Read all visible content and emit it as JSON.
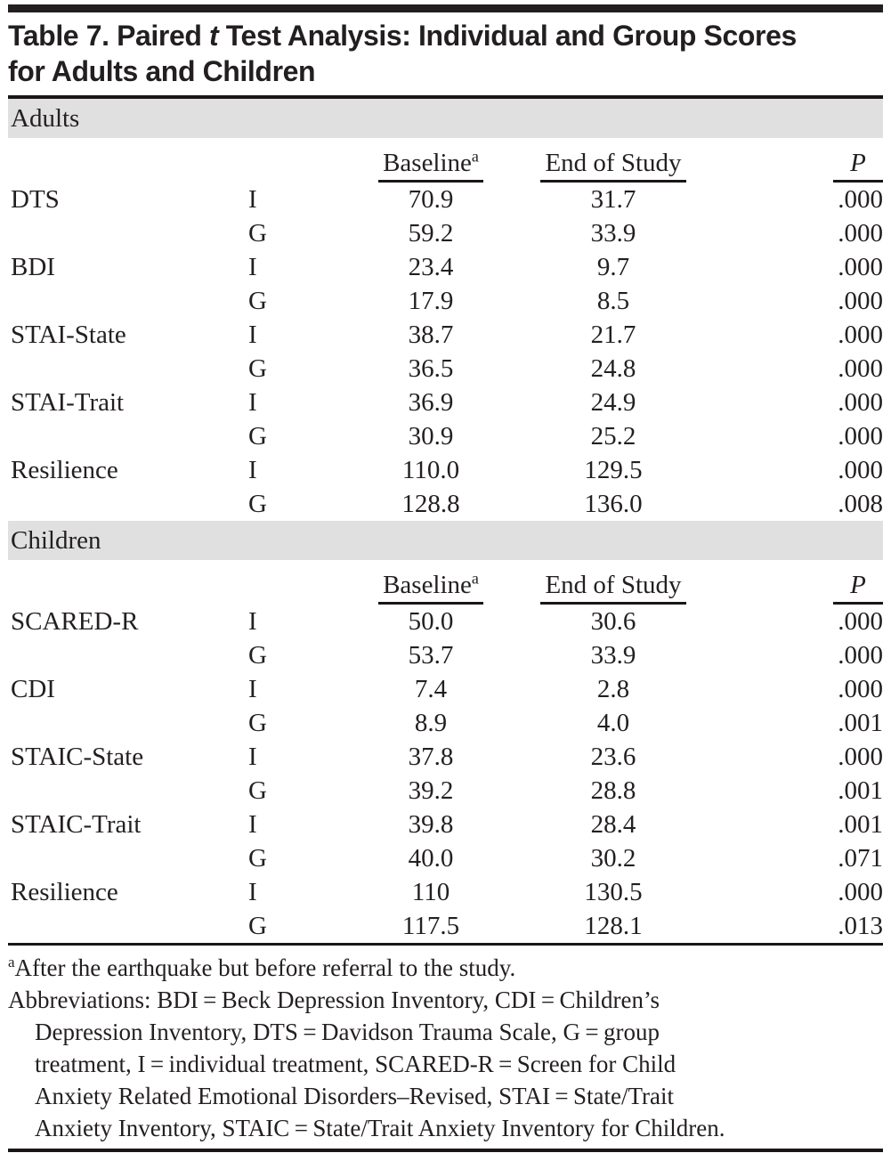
{
  "title": {
    "line1_part1": "Table 7. Paired ",
    "line1_italic": "t",
    "line1_part2": " Test Analysis: Individual and Group Scores",
    "line2": "for Adults and Children"
  },
  "columns": {
    "baseline": "Baseline",
    "baseline_sup": "a",
    "end_of_study": "End of Study",
    "p": "P"
  },
  "sections": [
    {
      "label": "Adults",
      "rows": [
        {
          "scale": "DTS",
          "group": "I",
          "baseline": "70.9",
          "end": "31.7",
          "p": ".000"
        },
        {
          "scale": "",
          "group": "G",
          "baseline": "59.2",
          "end": "33.9",
          "p": ".000"
        },
        {
          "scale": "BDI",
          "group": "I",
          "baseline": "23.4",
          "end": "9.7",
          "p": ".000"
        },
        {
          "scale": "",
          "group": "G",
          "baseline": "17.9",
          "end": "8.5",
          "p": ".000"
        },
        {
          "scale": "STAI-State",
          "group": "I",
          "baseline": "38.7",
          "end": "21.7",
          "p": ".000"
        },
        {
          "scale": "",
          "group": "G",
          "baseline": "36.5",
          "end": "24.8",
          "p": ".000"
        },
        {
          "scale": "STAI-Trait",
          "group": "I",
          "baseline": "36.9",
          "end": "24.9",
          "p": ".000"
        },
        {
          "scale": "",
          "group": "G",
          "baseline": "30.9",
          "end": "25.2",
          "p": ".000"
        },
        {
          "scale": "Resilience",
          "group": "I",
          "baseline": "110.0",
          "end": "129.5",
          "p": ".000"
        },
        {
          "scale": "",
          "group": "G",
          "baseline": "128.8",
          "end": "136.0",
          "p": ".008"
        }
      ]
    },
    {
      "label": "Children",
      "rows": [
        {
          "scale": "SCARED-R",
          "group": "I",
          "baseline": "50.0",
          "end": "30.6",
          "p": ".000"
        },
        {
          "scale": "",
          "group": "G",
          "baseline": "53.7",
          "end": "33.9",
          "p": ".000"
        },
        {
          "scale": "CDI",
          "group": "I",
          "baseline": "7.4",
          "end": "2.8",
          "p": ".000"
        },
        {
          "scale": "",
          "group": "G",
          "baseline": "8.9",
          "end": "4.0",
          "p": ".001"
        },
        {
          "scale": "STAIC-State",
          "group": "I",
          "baseline": "37.8",
          "end": "23.6",
          "p": ".000"
        },
        {
          "scale": "",
          "group": "G",
          "baseline": "39.2",
          "end": "28.8",
          "p": ".001"
        },
        {
          "scale": "STAIC-Trait",
          "group": "I",
          "baseline": "39.8",
          "end": "28.4",
          "p": ".001"
        },
        {
          "scale": "",
          "group": "G",
          "baseline": "40.0",
          "end": "30.2",
          "p": ".071"
        },
        {
          "scale": "Resilience",
          "group": "I",
          "baseline": "110",
          "end": "130.5",
          "p": ".000"
        },
        {
          "scale": "",
          "group": "G",
          "baseline": "117.5",
          "end": "128.1",
          "p": ".013"
        }
      ]
    }
  ],
  "footnotes": {
    "marker": "a",
    "note": "After the earthquake but before referral to the study.",
    "abbrev_lines": [
      "Abbreviations: BDI = Beck Depression Inventory, CDI = Children’s",
      "Depression Inventory, DTS = Davidson Trauma Scale, G = group",
      "treatment, I = individual treatment, SCARED-R = Screen for Child",
      "Anxiety Related Emotional Disorders–Revised, STAI = State/Trait",
      "Anxiety Inventory, STAIC = State/Trait Anxiety Inventory for Children."
    ]
  },
  "colors": {
    "text": "#231f20",
    "rule": "#1a1617",
    "band_background": "#e0e0e0"
  }
}
